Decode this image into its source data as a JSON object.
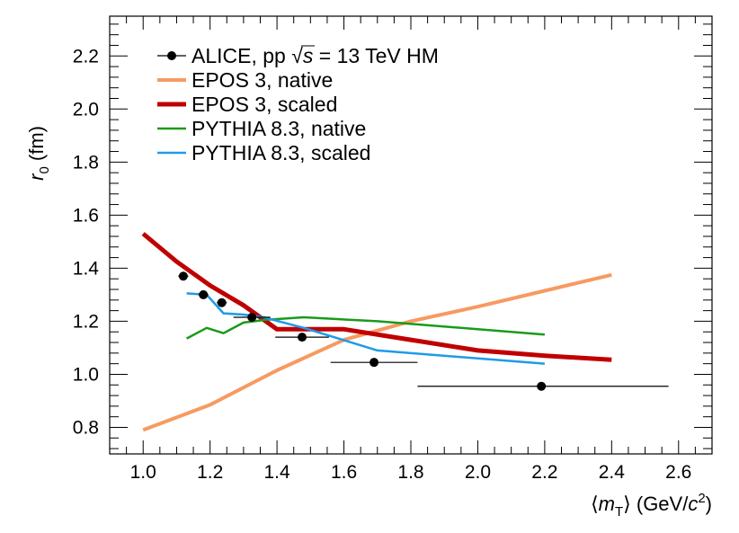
{
  "chart_data": {
    "type": "line",
    "title": "",
    "xlabel": {
      "pre": "⟨",
      "var": "m",
      "sub": "T",
      "post": "⟩ (GeV/",
      "c": "c",
      "sup": "2",
      "close": ")"
    },
    "ylabel": {
      "var": "r",
      "sub": "0",
      "post": " (fm)"
    },
    "xlim": [
      0.9,
      2.7
    ],
    "ylim": [
      0.7,
      2.35
    ],
    "xticks": [
      1.0,
      1.2,
      1.4,
      1.6,
      1.8,
      2.0,
      2.2,
      2.4,
      2.6
    ],
    "xtick_labels": [
      "1.0",
      "1.2",
      "1.4",
      "1.6",
      "1.8",
      "2.0",
      "2.2",
      "2.4",
      "2.6"
    ],
    "yticks": [
      0.8,
      1.0,
      1.2,
      1.4,
      1.6,
      1.8,
      2.0,
      2.2
    ],
    "ytick_labels": [
      "0.8",
      "1.0",
      "1.2",
      "1.4",
      "1.6",
      "1.8",
      "2.0",
      "2.2"
    ],
    "legend_position": "top-left",
    "series": [
      {
        "name": "ALICE, pp √s = 13 TeV HM",
        "legend_parts": {
          "pre": "ALICE, pp ",
          "sqrt": "√",
          "var": "s",
          "post": " = 13 TeV HM"
        },
        "kind": "points",
        "color": "#000000",
        "x": [
          1.12,
          1.18,
          1.235,
          1.325,
          1.475,
          1.69,
          2.19
        ],
        "y": [
          1.37,
          1.3,
          1.27,
          1.215,
          1.14,
          1.045,
          0.955
        ],
        "xerr_low": [
          0.015,
          0.015,
          0.015,
          0.055,
          0.08,
          0.13,
          0.37
        ],
        "xerr_high": [
          0.015,
          0.015,
          0.015,
          0.055,
          0.08,
          0.13,
          0.38
        ]
      },
      {
        "name": "EPOS 3, native",
        "kind": "line",
        "color": "#f79a61",
        "width": 4,
        "x": [
          1.0,
          1.2,
          1.4,
          1.6,
          1.8,
          2.0,
          2.2,
          2.4
        ],
        "y": [
          0.79,
          0.885,
          1.015,
          1.13,
          1.2,
          1.255,
          1.315,
          1.375
        ]
      },
      {
        "name": "EPOS 3, scaled",
        "kind": "line",
        "color": "#c00000",
        "width": 5,
        "x": [
          1.0,
          1.1,
          1.2,
          1.3,
          1.4,
          1.6,
          1.8,
          2.0,
          2.2,
          2.4
        ],
        "y": [
          1.53,
          1.425,
          1.335,
          1.26,
          1.17,
          1.17,
          1.13,
          1.09,
          1.07,
          1.055
        ]
      },
      {
        "name": "PYTHIA 8.3, native",
        "kind": "line",
        "color": "#1a9a1a",
        "width": 2.5,
        "x": [
          1.13,
          1.19,
          1.24,
          1.3,
          1.365,
          1.48,
          1.7,
          2.2
        ],
        "y": [
          1.135,
          1.175,
          1.155,
          1.195,
          1.205,
          1.215,
          1.2,
          1.15
        ]
      },
      {
        "name": "PYTHIA 8.3, scaled",
        "kind": "line",
        "color": "#1e9be8",
        "width": 2.5,
        "x": [
          1.13,
          1.19,
          1.24,
          1.3,
          1.36,
          1.48,
          1.7,
          2.2
        ],
        "y": [
          1.305,
          1.3,
          1.23,
          1.225,
          1.215,
          1.175,
          1.09,
          1.04
        ]
      }
    ]
  }
}
